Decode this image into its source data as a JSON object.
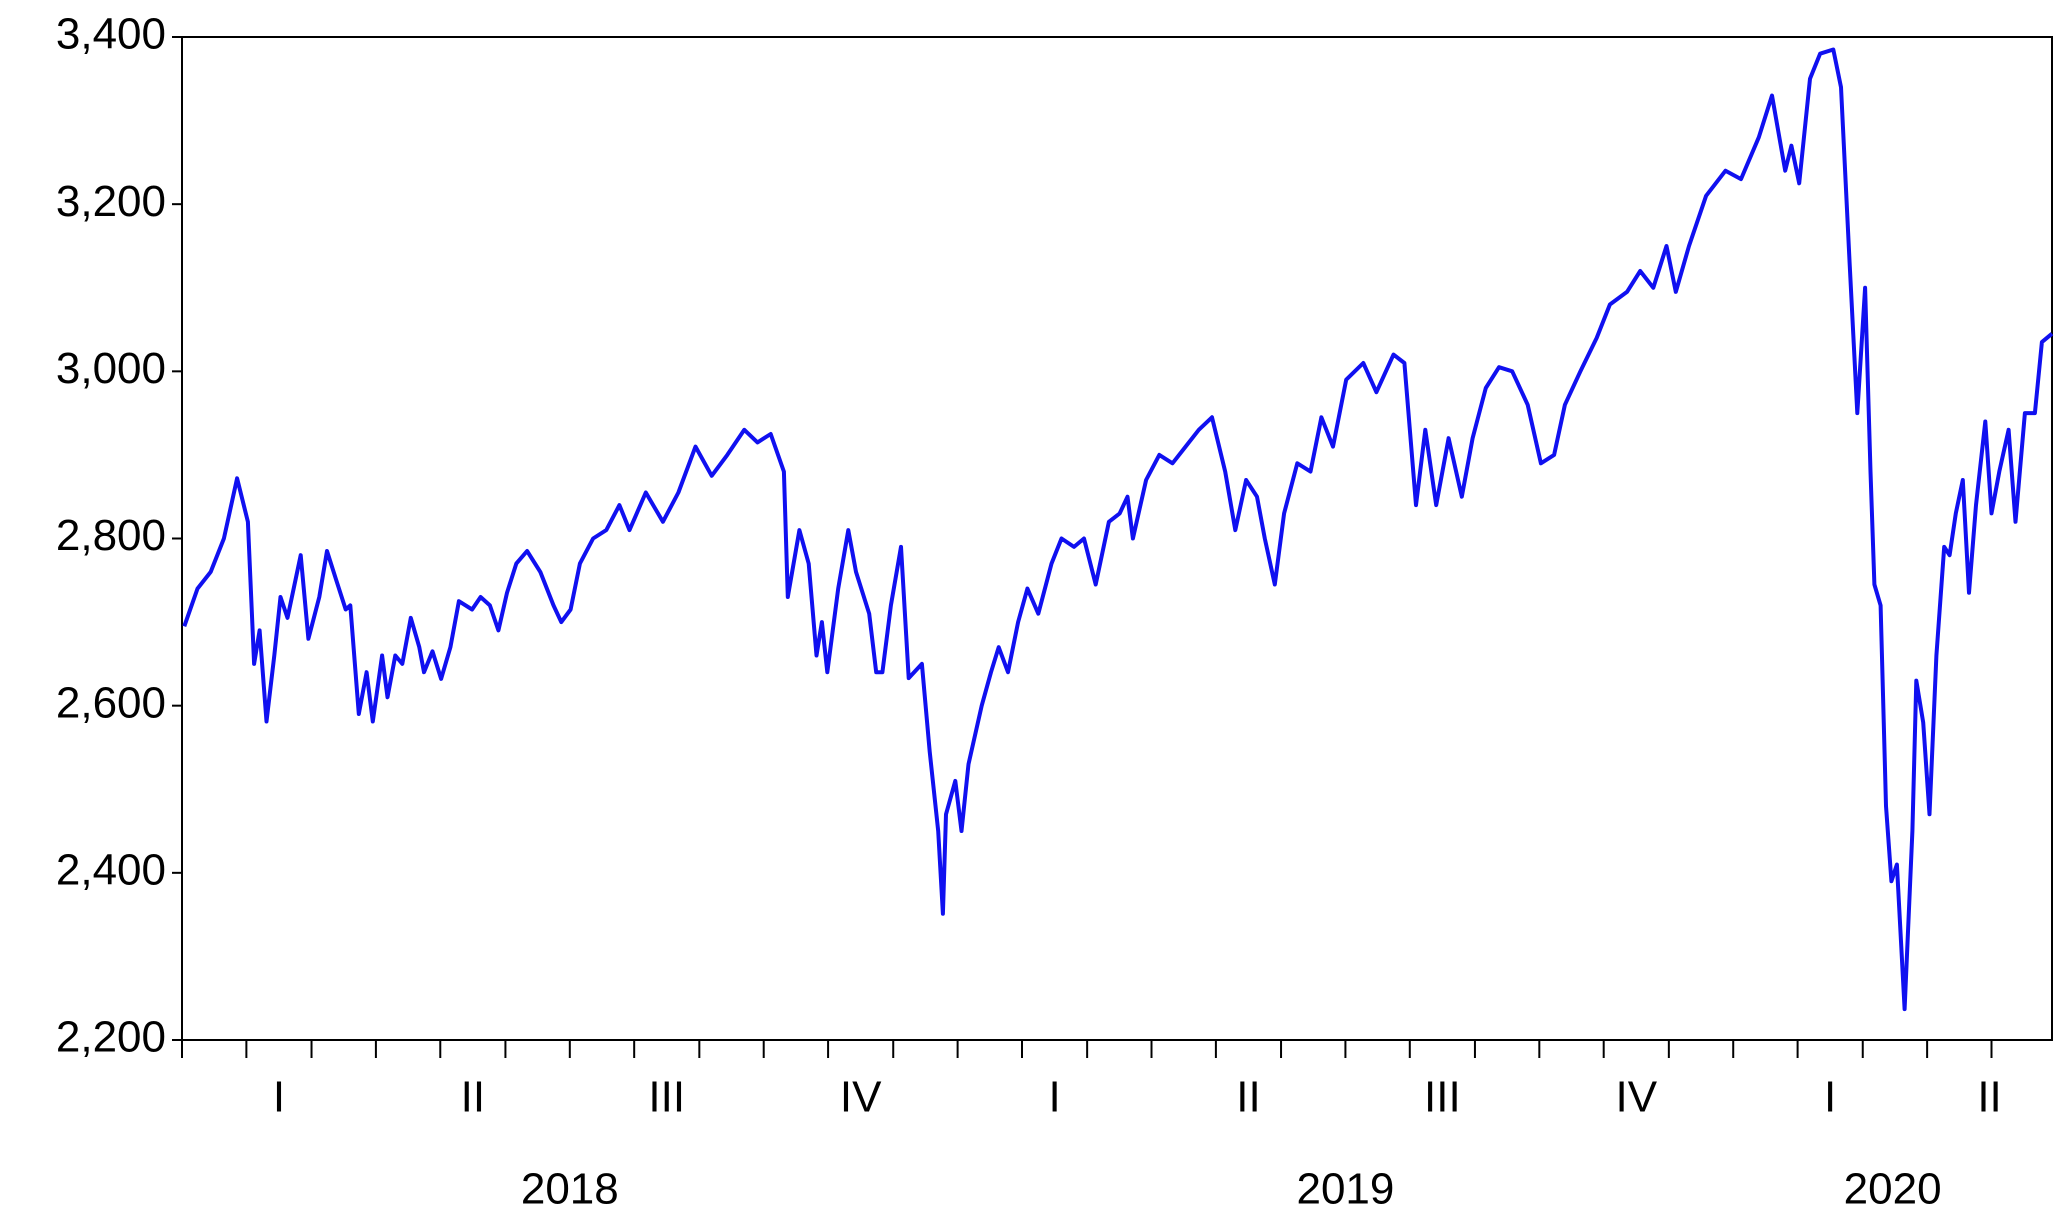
{
  "chart_data": {
    "type": "line",
    "x": [
      2018.003,
      2018.02,
      2018.037,
      2018.054,
      2018.071,
      2018.085,
      2018.093,
      2018.1,
      2018.109,
      2018.119,
      2018.127,
      2018.136,
      2018.153,
      2018.163,
      2018.177,
      2018.187,
      2018.199,
      2018.211,
      2018.217,
      2018.228,
      2018.238,
      2018.246,
      2018.258,
      2018.265,
      2018.275,
      2018.284,
      2018.295,
      2018.306,
      2018.312,
      2018.323,
      2018.334,
      2018.346,
      2018.357,
      2018.374,
      2018.385,
      2018.397,
      2018.408,
      2018.419,
      2018.431,
      2018.445,
      2018.462,
      2018.479,
      2018.489,
      2018.501,
      2018.513,
      2018.53,
      2018.547,
      2018.564,
      2018.577,
      2018.598,
      2018.62,
      2018.64,
      2018.662,
      2018.683,
      2018.703,
      2018.725,
      2018.742,
      2018.759,
      2018.776,
      2018.781,
      2018.796,
      2018.808,
      2018.818,
      2018.825,
      2018.832,
      2018.846,
      2018.859,
      2018.869,
      2018.886,
      2018.895,
      2018.903,
      2018.914,
      2018.927,
      2018.937,
      2018.954,
      2018.964,
      2018.975,
      2018.981,
      2018.985,
      2018.997,
      2019.005,
      2019.014,
      2019.031,
      2019.043,
      2019.053,
      2019.065,
      2019.078,
      2019.09,
      2019.104,
      2019.121,
      2019.134,
      2019.15,
      2019.163,
      2019.178,
      2019.195,
      2019.209,
      2019.219,
      2019.226,
      2019.243,
      2019.26,
      2019.277,
      2019.294,
      2019.311,
      2019.328,
      2019.345,
      2019.358,
      2019.372,
      2019.386,
      2019.396,
      2019.409,
      2019.421,
      2019.438,
      2019.455,
      2019.469,
      2019.484,
      2019.501,
      2019.523,
      2019.54,
      2019.562,
      2019.576,
      2019.591,
      2019.603,
      2019.617,
      2019.633,
      2019.65,
      2019.664,
      2019.681,
      2019.698,
      2019.715,
      2019.735,
      2019.752,
      2019.769,
      2019.783,
      2019.803,
      2019.824,
      2019.841,
      2019.863,
      2019.88,
      2019.897,
      2019.914,
      2019.926,
      2019.943,
      2019.965,
      2019.99,
      2020.01,
      2020.033,
      2020.05,
      2020.067,
      2020.075,
      2020.085,
      2020.099,
      2020.112,
      2020.129,
      2020.139,
      2020.15,
      2020.16,
      2020.17,
      2020.177,
      2020.182,
      2020.19,
      2020.197,
      2020.204,
      2020.211,
      2020.221,
      2020.231,
      2020.236,
      2020.245,
      2020.253,
      2020.262,
      2020.272,
      2020.279,
      2020.287,
      2020.296,
      2020.304,
      2020.313,
      2020.325,
      2020.333,
      2020.343,
      2020.355,
      2020.364,
      2020.376,
      2020.389,
      2020.398,
      2020.411
    ],
    "series": [
      {
        "color": "#1010f0",
        "values": [
          2695,
          2740,
          2760,
          2800,
          2872,
          2820,
          2650,
          2690,
          2581,
          2660,
          2730,
          2705,
          2780,
          2680,
          2730,
          2785,
          2750,
          2715,
          2720,
          2590,
          2640,
          2581,
          2660,
          2610,
          2660,
          2650,
          2705,
          2670,
          2640,
          2665,
          2632,
          2670,
          2725,
          2715,
          2730,
          2720,
          2690,
          2735,
          2770,
          2785,
          2760,
          2720,
          2700,
          2715,
          2770,
          2800,
          2810,
          2840,
          2810,
          2855,
          2820,
          2855,
          2910,
          2875,
          2900,
          2930,
          2915,
          2925,
          2880,
          2730,
          2810,
          2770,
          2660,
          2700,
          2640,
          2740,
          2810,
          2760,
          2710,
          2640,
          2640,
          2720,
          2790,
          2633,
          2650,
          2545,
          2450,
          2351,
          2470,
          2510,
          2450,
          2530,
          2600,
          2640,
          2670,
          2640,
          2700,
          2740,
          2710,
          2770,
          2800,
          2790,
          2800,
          2745,
          2820,
          2830,
          2850,
          2800,
          2870,
          2900,
          2890,
          2910,
          2930,
          2945,
          2880,
          2810,
          2870,
          2850,
          2800,
          2745,
          2830,
          2890,
          2880,
          2945,
          2910,
          2990,
          3010,
          2975,
          3020,
          3010,
          2840,
          2930,
          2840,
          2920,
          2850,
          2920,
          2980,
          3005,
          3000,
          2960,
          2890,
          2900,
          2960,
          3000,
          3040,
          3080,
          3095,
          3120,
          3100,
          3150,
          3095,
          3150,
          3210,
          3240,
          3230,
          3280,
          3330,
          3240,
          3270,
          3225,
          3350,
          3380,
          3385,
          3340,
          3130,
          2950,
          3100,
          2880,
          2745,
          2720,
          2480,
          2390,
          2410,
          2237,
          2450,
          2630,
          2580,
          2470,
          2660,
          2790,
          2780,
          2830,
          2870,
          2735,
          2840,
          2940,
          2830,
          2880,
          2930,
          2820,
          2950,
          2950,
          3035,
          3045
        ]
      }
    ],
    "xlim": [
      2018,
      2020.411
    ],
    "ylim": [
      2200,
      3400
    ],
    "yticks": [
      {
        "value": 2200,
        "label": "2,200"
      },
      {
        "value": 2400,
        "label": "2,400"
      },
      {
        "value": 2600,
        "label": "2,600"
      },
      {
        "value": 2800,
        "label": "2,800"
      },
      {
        "value": 3000,
        "label": "3,000"
      },
      {
        "value": 3200,
        "label": "3,200"
      },
      {
        "value": 3400,
        "label": "3,400"
      }
    ],
    "xticks": [
      {
        "value": 2018,
        "label": "I"
      },
      {
        "value": 2018.25,
        "label": "II"
      },
      {
        "value": 2018.5,
        "label": "III"
      },
      {
        "value": 2018.75,
        "label": "IV"
      },
      {
        "value": 2019,
        "label": "I"
      },
      {
        "value": 2019.25,
        "label": "II"
      },
      {
        "value": 2019.5,
        "label": "III"
      },
      {
        "value": 2019.75,
        "label": "IV"
      },
      {
        "value": 2020,
        "label": "I"
      },
      {
        "value": 2020.25,
        "label": "II"
      }
    ],
    "xminor_ticks": [
      2018.083,
      2018.167,
      2018.333,
      2018.417,
      2018.583,
      2018.667,
      2018.833,
      2018.917,
      2019.083,
      2019.167,
      2019.333,
      2019.417,
      2019.583,
      2019.667,
      2019.833,
      2019.917,
      2020.083,
      2020.167,
      2020.333
    ],
    "year_ticks": [
      2018,
      2019,
      2020
    ]
  }
}
